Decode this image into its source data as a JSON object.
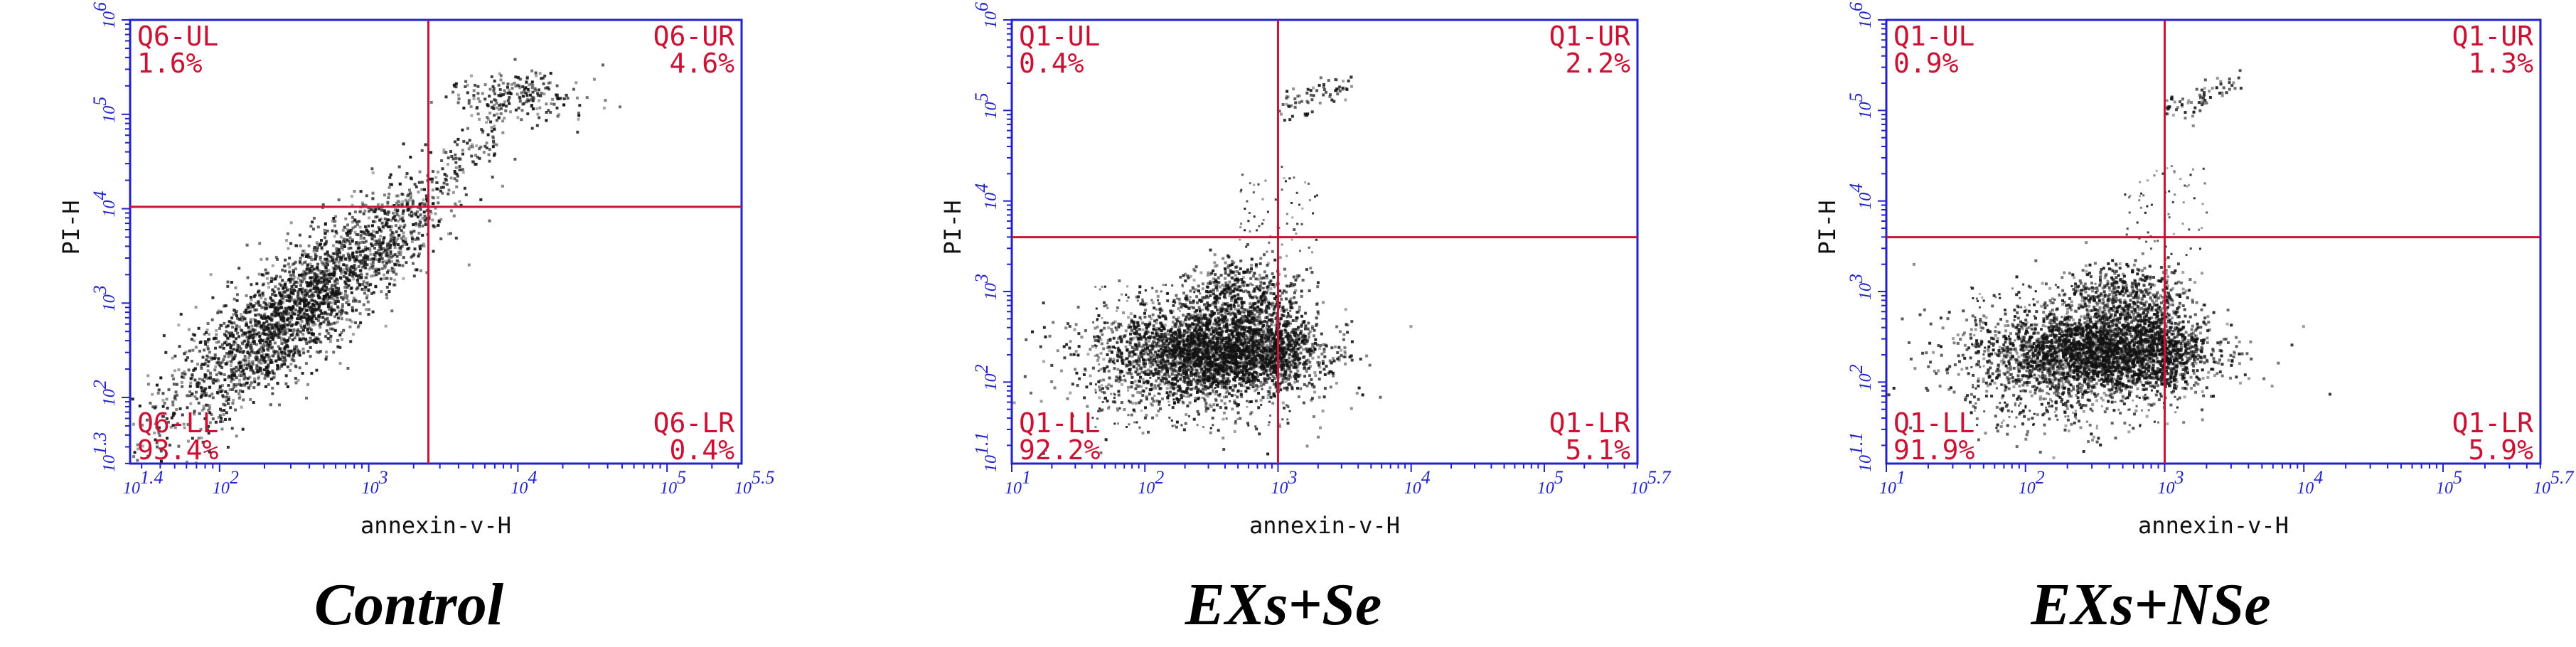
{
  "colors": {
    "frame": "#2222cc",
    "gate": "#cc1133",
    "dots": "#111111",
    "caption": "#000000"
  },
  "chart_data": [
    {
      "type": "scatter",
      "caption": "Control",
      "xlabel": "annexin-v-H",
      "ylabel": "PI-H",
      "x_log_range": [
        1.4,
        5.5
      ],
      "y_log_range": [
        1.3,
        6.0
      ],
      "x_ticks": [
        {
          "exp": 1.4,
          "label": "10",
          "sup": "1.4"
        },
        {
          "exp": 2,
          "label": "10",
          "sup": "2"
        },
        {
          "exp": 3,
          "label": "10",
          "sup": "3"
        },
        {
          "exp": 4,
          "label": "10",
          "sup": "4"
        },
        {
          "exp": 5,
          "label": "10",
          "sup": "5"
        },
        {
          "exp": 5.5,
          "label": "10",
          "sup": "5.5"
        }
      ],
      "y_ticks": [
        {
          "exp": 1.3,
          "label": "10",
          "sup": "1.3"
        },
        {
          "exp": 2,
          "label": "10",
          "sup": "2"
        },
        {
          "exp": 3,
          "label": "10",
          "sup": "3"
        },
        {
          "exp": 4,
          "label": "10",
          "sup": "4"
        },
        {
          "exp": 5,
          "label": "10",
          "sup": "5"
        },
        {
          "exp": 6,
          "label": "10",
          "sup": "6"
        }
      ],
      "gate": {
        "x_exp": 3.4,
        "y_exp": 4.02
      },
      "quadrants": {
        "UL": {
          "name": "Q6-UL",
          "pct": "1.6%"
        },
        "UR": {
          "name": "Q6-UR",
          "pct": "4.6%"
        },
        "LL": {
          "name": "Q6-LL",
          "pct": "93.4%"
        },
        "LR": {
          "name": "Q6-LR",
          "pct": "0.4%"
        }
      }
    },
    {
      "type": "scatter",
      "caption": "EXs+Se",
      "xlabel": "annexin-v-H",
      "ylabel": "PI-H",
      "x_log_range": [
        1.0,
        5.7
      ],
      "y_log_range": [
        1.1,
        6.0
      ],
      "x_ticks": [
        {
          "exp": 1,
          "label": "10",
          "sup": "1"
        },
        {
          "exp": 2,
          "label": "10",
          "sup": "2"
        },
        {
          "exp": 3,
          "label": "10",
          "sup": "3"
        },
        {
          "exp": 4,
          "label": "10",
          "sup": "4"
        },
        {
          "exp": 5,
          "label": "10",
          "sup": "5"
        },
        {
          "exp": 5.7,
          "label": "10",
          "sup": "5.7"
        }
      ],
      "y_ticks": [
        {
          "exp": 1.1,
          "label": "10",
          "sup": "1.1"
        },
        {
          "exp": 2,
          "label": "10",
          "sup": "2"
        },
        {
          "exp": 3,
          "label": "10",
          "sup": "3"
        },
        {
          "exp": 4,
          "label": "10",
          "sup": "4"
        },
        {
          "exp": 5,
          "label": "10",
          "sup": "5"
        },
        {
          "exp": 6,
          "label": "10",
          "sup": "6"
        }
      ],
      "gate": {
        "x_exp": 3.0,
        "y_exp": 3.6
      },
      "quadrants": {
        "UL": {
          "name": "Q1-UL",
          "pct": "0.4%"
        },
        "UR": {
          "name": "Q1-UR",
          "pct": "2.2%"
        },
        "LL": {
          "name": "Q1-LL",
          "pct": "92.2%"
        },
        "LR": {
          "name": "Q1-LR",
          "pct": "5.1%"
        }
      }
    },
    {
      "type": "scatter",
      "caption": "EXs+NSe",
      "xlabel": "annexin-v-H",
      "ylabel": "PI-H",
      "x_log_range": [
        1.0,
        5.7
      ],
      "y_log_range": [
        1.1,
        6.0
      ],
      "x_ticks": [
        {
          "exp": 1,
          "label": "10",
          "sup": "1"
        },
        {
          "exp": 2,
          "label": "10",
          "sup": "2"
        },
        {
          "exp": 3,
          "label": "10",
          "sup": "3"
        },
        {
          "exp": 4,
          "label": "10",
          "sup": "4"
        },
        {
          "exp": 5,
          "label": "10",
          "sup": "5"
        },
        {
          "exp": 5.7,
          "label": "10",
          "sup": "5.7"
        }
      ],
      "y_ticks": [
        {
          "exp": 1.1,
          "label": "10",
          "sup": "1.1"
        },
        {
          "exp": 2,
          "label": "10",
          "sup": "2"
        },
        {
          "exp": 3,
          "label": "10",
          "sup": "3"
        },
        {
          "exp": 4,
          "label": "10",
          "sup": "4"
        },
        {
          "exp": 5,
          "label": "10",
          "sup": "5"
        },
        {
          "exp": 6,
          "label": "10",
          "sup": "6"
        }
      ],
      "gate": {
        "x_exp": 3.0,
        "y_exp": 3.6
      },
      "quadrants": {
        "UL": {
          "name": "Q1-UL",
          "pct": "0.9%"
        },
        "UR": {
          "name": "Q1-UR",
          "pct": "1.3%"
        },
        "LL": {
          "name": "Q1-LL",
          "pct": "91.9%"
        },
        "LR": {
          "name": "Q1-LR",
          "pct": "5.9%"
        }
      }
    }
  ]
}
